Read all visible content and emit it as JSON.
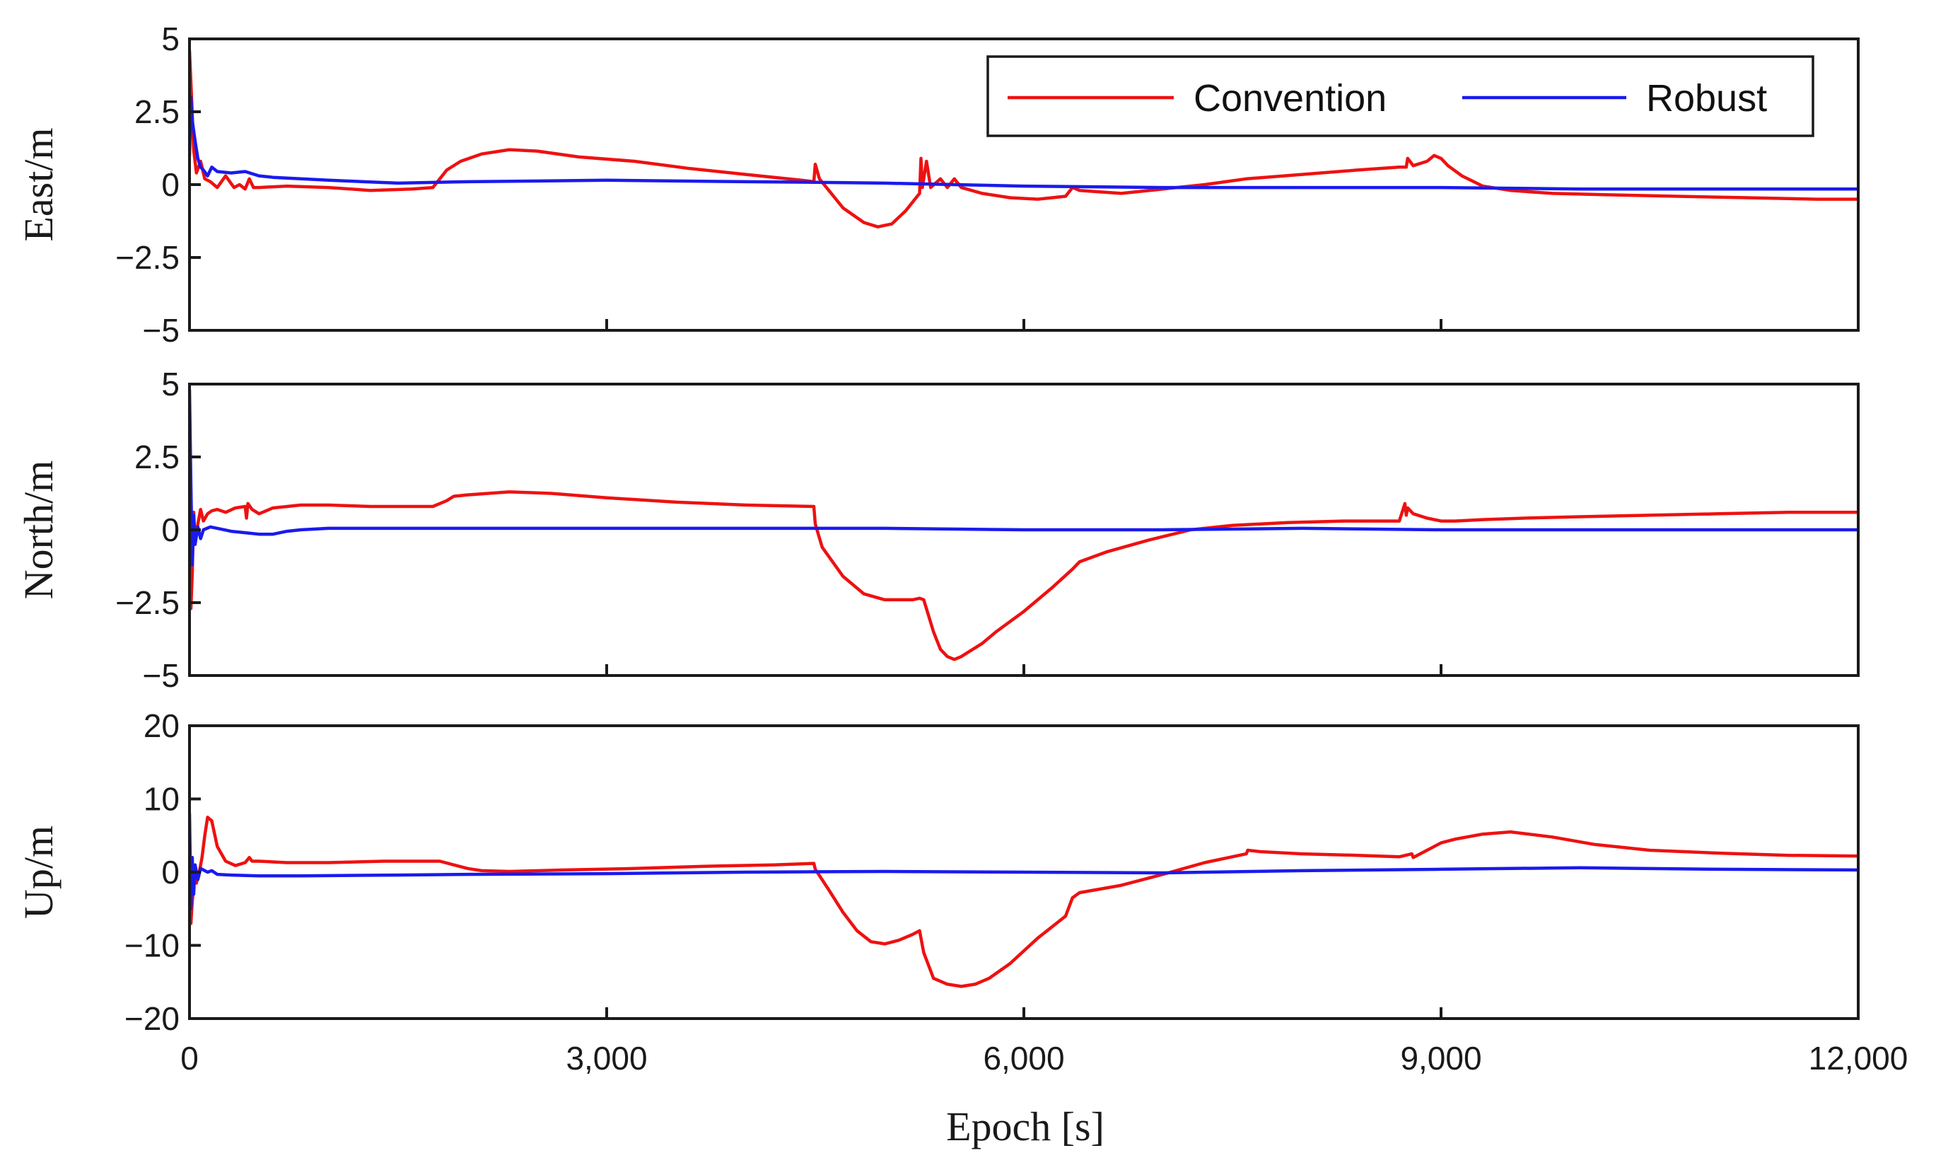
{
  "chart_data": {
    "type": "line",
    "xlabel": "Epoch [s]",
    "xlim": [
      0,
      12000
    ],
    "xticks": [
      0,
      3000,
      6000,
      9000,
      12000
    ],
    "xtick_labels": [
      "0",
      "3,000",
      "6,000",
      "9,000",
      "12,000"
    ],
    "legend": {
      "position": "top-right",
      "entries": [
        {
          "name": "Convention",
          "color": "#ee1111"
        },
        {
          "name": "Robust",
          "color": "#1a1aee"
        }
      ]
    },
    "panels": [
      {
        "id": "east",
        "ylabel": "East/m",
        "ylim": [
          -5,
          5
        ],
        "yticks": [
          5,
          2.5,
          0,
          -2.5,
          -5
        ],
        "ytick_labels": [
          "5",
          "2.5",
          "0",
          "−2.5",
          "−5"
        ],
        "series": [
          {
            "name": "Convention",
            "color": "#ee1111",
            "x": [
              0,
              15,
              30,
              50,
              80,
              110,
              150,
              200,
              260,
              320,
              360,
              400,
              430,
              460,
              500,
              700,
              1000,
              1300,
              1600,
              1750,
              1800,
              1850,
              1950,
              2100,
              2300,
              2500,
              2800,
              3200,
              3600,
              4000,
              4400,
              4490,
              4500,
              4530,
              4700,
              4850,
              4950,
              5050,
              5150,
              5250,
              5260,
              5270,
              5300,
              5330,
              5400,
              5450,
              5500,
              5550,
              5700,
              5900,
              6100,
              6300,
              6350,
              6400,
              6700,
              7000,
              7300,
              7600,
              8000,
              8400,
              8700,
              8750,
              8760,
              8800,
              8900,
              8950,
              9000,
              9050,
              9150,
              9300,
              9500,
              9800,
              10200,
              10700,
              11200,
              11700,
              12000
            ],
            "y": [
              4.6,
              3.0,
              1.2,
              0.4,
              0.8,
              0.2,
              0.1,
              -0.1,
              0.3,
              -0.1,
              0.0,
              -0.15,
              0.2,
              -0.1,
              -0.1,
              -0.05,
              -0.1,
              -0.2,
              -0.15,
              -0.1,
              0.2,
              0.5,
              0.8,
              1.05,
              1.2,
              1.15,
              0.95,
              0.8,
              0.55,
              0.35,
              0.15,
              0.1,
              0.7,
              0.2,
              -0.8,
              -1.3,
              -1.45,
              -1.35,
              -0.9,
              -0.3,
              0.9,
              -0.1,
              0.8,
              -0.1,
              0.2,
              -0.1,
              0.2,
              -0.1,
              -0.3,
              -0.45,
              -0.5,
              -0.4,
              -0.1,
              -0.2,
              -0.3,
              -0.15,
              0.0,
              0.2,
              0.35,
              0.5,
              0.6,
              0.6,
              0.9,
              0.65,
              0.8,
              1.0,
              0.9,
              0.65,
              0.3,
              -0.05,
              -0.2,
              -0.3,
              -0.35,
              -0.4,
              -0.45,
              -0.5,
              -0.5
            ]
          },
          {
            "name": "Robust",
            "color": "#1a1aee",
            "x": [
              0,
              10,
              20,
              40,
              60,
              80,
              100,
              130,
              160,
              200,
              300,
              400,
              500,
              600,
              1000,
              1500,
              2000,
              3000,
              4000,
              4500,
              5000,
              5500,
              6000,
              7000,
              8000,
              9000,
              10000,
              11000,
              12000
            ],
            "y": [
              1.0,
              3.0,
              2.2,
              1.5,
              0.9,
              0.6,
              0.5,
              0.3,
              0.6,
              0.45,
              0.4,
              0.45,
              0.3,
              0.25,
              0.15,
              0.05,
              0.1,
              0.15,
              0.1,
              0.08,
              0.05,
              0.0,
              -0.05,
              -0.1,
              -0.1,
              -0.1,
              -0.15,
              -0.15,
              -0.15
            ]
          }
        ]
      },
      {
        "id": "north",
        "ylabel": "North/m",
        "ylim": [
          -5,
          5
        ],
        "yticks": [
          5,
          2.5,
          0,
          -2.5,
          -5
        ],
        "ytick_labels": [
          "5",
          "2.5",
          "0",
          "−2.5",
          "−5"
        ],
        "series": [
          {
            "name": "Convention",
            "color": "#ee1111",
            "x": [
              0,
              10,
              20,
              30,
              40,
              60,
              80,
              100,
              130,
              160,
              200,
              260,
              330,
              400,
              410,
              420,
              450,
              500,
              600,
              800,
              1000,
              1300,
              1600,
              1750,
              1800,
              1850,
              1900,
              2000,
              2300,
              2600,
              3000,
              3500,
              4000,
              4490,
              4500,
              4550,
              4700,
              4850,
              5000,
              5200,
              5250,
              5280,
              5350,
              5400,
              5450,
              5500,
              5550,
              5600,
              5700,
              5800,
              6000,
              6200,
              6350,
              6400,
              6600,
              6900,
              7200,
              7500,
              7900,
              8300,
              8700,
              8740,
              8750,
              8760,
              8800,
              8900,
              9000,
              9100,
              9300,
              9600,
              10000,
              10500,
              11000,
              11500,
              12000
            ],
            "y": [
              0,
              -2.7,
              -1.5,
              0.6,
              -0.4,
              0.2,
              0.7,
              0.3,
              0.55,
              0.65,
              0.7,
              0.6,
              0.75,
              0.8,
              0.4,
              0.9,
              0.7,
              0.55,
              0.75,
              0.85,
              0.85,
              0.8,
              0.8,
              0.8,
              0.9,
              1.0,
              1.15,
              1.2,
              1.3,
              1.25,
              1.1,
              0.95,
              0.85,
              0.8,
              0.2,
              -0.6,
              -1.6,
              -2.2,
              -2.4,
              -2.4,
              -2.35,
              -2.4,
              -3.5,
              -4.1,
              -4.35,
              -4.45,
              -4.35,
              -4.2,
              -3.9,
              -3.5,
              -2.8,
              -2.0,
              -1.35,
              -1.1,
              -0.75,
              -0.35,
              0.0,
              0.15,
              0.25,
              0.3,
              0.3,
              0.9,
              0.5,
              0.75,
              0.55,
              0.4,
              0.3,
              0.3,
              0.35,
              0.4,
              0.45,
              0.5,
              0.55,
              0.6,
              0.6
            ]
          },
          {
            "name": "Robust",
            "color": "#1a1aee",
            "x": [
              0,
              10,
              20,
              30,
              40,
              60,
              80,
              100,
              150,
              200,
              300,
              400,
              500,
              600,
              700,
              800,
              1000,
              1500,
              2000,
              3000,
              4000,
              5000,
              6000,
              7000,
              8000,
              9000,
              10000,
              11000,
              12000
            ],
            "y": [
              4.8,
              1.5,
              -1.2,
              0.5,
              -0.5,
              0.1,
              -0.3,
              0.0,
              0.1,
              0.05,
              -0.05,
              -0.1,
              -0.15,
              -0.15,
              -0.05,
              0.0,
              0.05,
              0.05,
              0.05,
              0.05,
              0.05,
              0.05,
              0.0,
              0.0,
              0.05,
              0.0,
              0.0,
              0.0,
              0.0
            ]
          }
        ]
      },
      {
        "id": "up",
        "ylabel": "Up/m",
        "ylim": [
          -20,
          20
        ],
        "yticks": [
          20,
          10,
          0,
          -10,
          -20
        ],
        "ytick_labels": [
          "20",
          "10",
          "0",
          "−10",
          "−20"
        ],
        "series": [
          {
            "name": "Convention",
            "color": "#ee1111",
            "x": [
              0,
              10,
              20,
              35,
              50,
              70,
              90,
              110,
              130,
              160,
              200,
              260,
              330,
              400,
              430,
              450,
              500,
              700,
              1000,
              1400,
              1800,
              2000,
              2100,
              2300,
              2700,
              3200,
              3700,
              4200,
              4490,
              4500,
              4600,
              4700,
              4800,
              4900,
              5000,
              5100,
              5200,
              5250,
              5280,
              5350,
              5450,
              5550,
              5650,
              5750,
              5900,
              6100,
              6300,
              6350,
              6400,
              6700,
              7000,
              7300,
              7600,
              7610,
              7700,
              8000,
              8400,
              8700,
              8790,
              8800,
              8900,
              9000,
              9100,
              9300,
              9500,
              9800,
              10100,
              10500,
              11000,
              11500,
              12000
            ],
            "y": [
              -5,
              -7,
              -4,
              -1,
              -1.5,
              0,
              2,
              5,
              7.5,
              7,
              3.5,
              1.5,
              0.9,
              1.3,
              2.0,
              1.5,
              1.5,
              1.3,
              1.3,
              1.5,
              1.5,
              0.5,
              0.2,
              0.1,
              0.3,
              0.5,
              0.8,
              1.0,
              1.2,
              0.4,
              -2.5,
              -5.5,
              -8,
              -9.5,
              -9.8,
              -9.3,
              -8.5,
              -8.0,
              -11.0,
              -14.5,
              -15.3,
              -15.6,
              -15.3,
              -14.5,
              -12.5,
              -9.0,
              -6.0,
              -3.5,
              -2.8,
              -1.8,
              -0.3,
              1.3,
              2.5,
              3.0,
              2.8,
              2.5,
              2.3,
              2.1,
              2.5,
              2.0,
              3.0,
              4.0,
              4.5,
              5.2,
              5.5,
              4.8,
              3.8,
              3.0,
              2.6,
              2.3,
              2.2
            ]
          },
          {
            "name": "Robust",
            "color": "#1a1aee",
            "x": [
              0,
              10,
              20,
              30,
              40,
              60,
              80,
              100,
              130,
              160,
              200,
              300,
              500,
              800,
              1500,
              2000,
              3000,
              4000,
              5000,
              6000,
              7000,
              8000,
              9000,
              9500,
              10000,
              11000,
              12000
            ],
            "y": [
              8,
              -5,
              2,
              -3,
              1,
              -1,
              0.5,
              0.3,
              0,
              0.2,
              -0.3,
              -0.4,
              -0.5,
              -0.5,
              -0.4,
              -0.3,
              -0.2,
              0.0,
              0.1,
              0.0,
              -0.1,
              0.2,
              0.4,
              0.5,
              0.6,
              0.4,
              0.3
            ]
          }
        ]
      }
    ]
  }
}
